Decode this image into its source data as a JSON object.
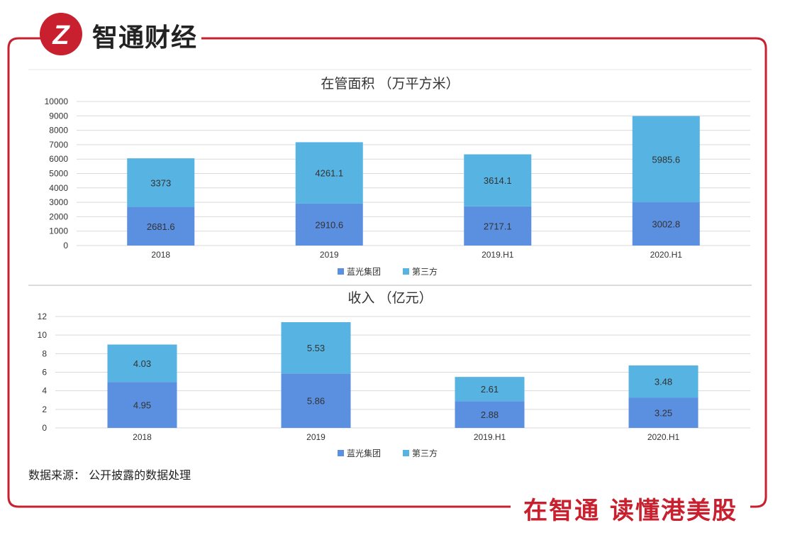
{
  "brand": {
    "name": "智通财经",
    "logo_mark": "Z"
  },
  "footer": {
    "slogan": "在智通  读懂港美股"
  },
  "source_note": "数据来源： 公开披露的数据处理",
  "colors": {
    "frame_red": "#c8202e",
    "series1": "#5b8fe0",
    "series2": "#56b3e2"
  },
  "chart_data": [
    {
      "type": "bar",
      "stacked": true,
      "title": "在管面积 （万平方米）",
      "categories": [
        "2018",
        "2019",
        "2019.H1",
        "2020.H1"
      ],
      "series": [
        {
          "name": "蓝光集团",
          "values": [
            2681.6,
            2910.6,
            2717.1,
            3002.8
          ]
        },
        {
          "name": "第三方",
          "values": [
            3373,
            4261.1,
            3614.1,
            5985.6
          ]
        }
      ],
      "ylim": [
        0,
        10000
      ],
      "yticks": [
        "0",
        "1000",
        "2000",
        "3000",
        "4000",
        "5000",
        "6000",
        "7000",
        "8000",
        "9000",
        "10000"
      ],
      "grid": true,
      "legend": "bottom"
    },
    {
      "type": "bar",
      "stacked": true,
      "title": "收入 （亿元）",
      "categories": [
        "2018",
        "2019",
        "2019.H1",
        "2020.H1"
      ],
      "series": [
        {
          "name": "蓝光集团",
          "values": [
            4.95,
            5.86,
            2.88,
            3.25
          ]
        },
        {
          "name": "第三方",
          "values": [
            4.03,
            5.53,
            2.61,
            3.48
          ]
        }
      ],
      "ylim": [
        0,
        12
      ],
      "yticks": [
        "0",
        "2",
        "4",
        "6",
        "8",
        "10",
        "12"
      ],
      "grid": true,
      "legend": "bottom"
    }
  ]
}
